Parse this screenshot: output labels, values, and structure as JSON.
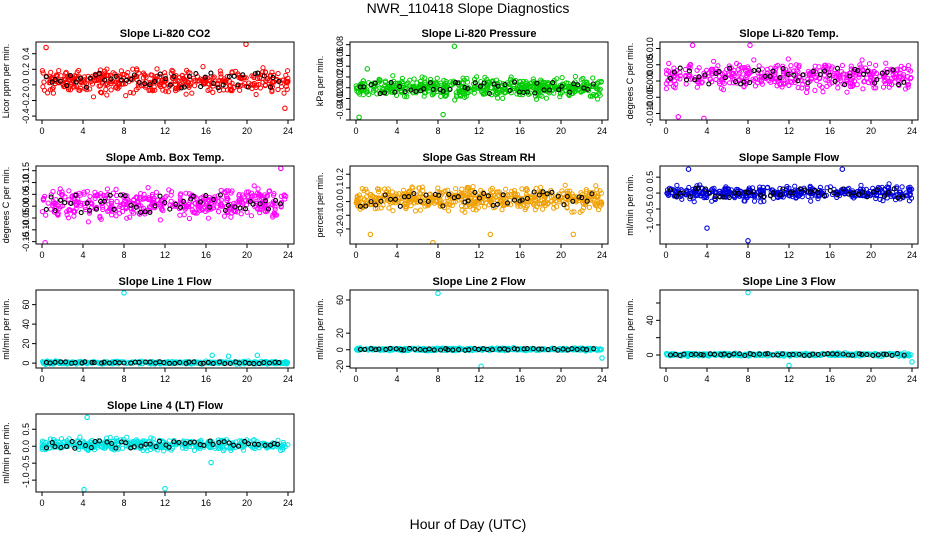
{
  "page": {
    "title": "NWR_110418  Slope Diagnostics",
    "xlabel": "Hour of Day (UTC)"
  },
  "chart_data": [
    {
      "type": "scatter",
      "title": "Slope Li-820 CO2",
      "ylabel": "Licor ppm per min.",
      "xlim": [
        0,
        24
      ],
      "xticks": [
        0,
        4,
        8,
        12,
        16,
        20,
        24
      ],
      "ylim": [
        -0.45,
        0.55
      ],
      "yticks": [
        -0.4,
        -0.2,
        0.0,
        0.2,
        0.4
      ],
      "ytick_labels": [
        "-0.4",
        "-0.2",
        "0.0",
        "0.2",
        "0.4"
      ],
      "color": "#ff0000",
      "center": 0.05,
      "spread": 0.38,
      "count": 420,
      "outliers": [
        [
          19.9,
          0.52
        ],
        [
          0.4,
          0.48
        ],
        [
          23.7,
          -0.3
        ]
      ]
    },
    {
      "type": "scatter",
      "title": "Slope Li-820 Pressure",
      "ylabel": "kPa per min.",
      "xlim": [
        0,
        24
      ],
      "xticks": [
        0,
        4,
        8,
        12,
        16,
        20,
        24
      ],
      "ylim": [
        -0.06,
        0.085
      ],
      "yticks": [
        -0.06,
        -0.04,
        -0.02,
        0.0,
        0.02,
        0.04,
        0.06,
        0.08
      ],
      "ytick_labels": [
        "",
        "-0.04",
        "-0.02",
        "0.00",
        "0.02",
        "0.04",
        "0.06",
        "0.08"
      ],
      "color": "#00cc00",
      "center": 0.0,
      "spread": 0.04,
      "count": 520,
      "outliers": [
        [
          9.6,
          0.077
        ],
        [
          0.3,
          -0.055
        ],
        [
          1.1,
          0.035
        ],
        [
          8.5,
          -0.05
        ]
      ]
    },
    {
      "type": "scatter",
      "title": "Slope Li-820 Temp.",
      "ylabel": "degrees C per min.",
      "xlim": [
        0,
        24
      ],
      "xticks": [
        0,
        4,
        8,
        12,
        16,
        20,
        24
      ],
      "ylim": [
        -0.012,
        0.012
      ],
      "yticks": [
        -0.01,
        -0.005,
        0.0,
        0.005,
        0.01
      ],
      "ytick_labels": [
        "-0.010",
        "-0.005",
        "0.000",
        "0.005",
        "0.010"
      ],
      "color": "#ff00ff",
      "center": 0.0015,
      "spread": 0.01,
      "count": 420,
      "outliers": [
        [
          2.6,
          0.011
        ],
        [
          8.2,
          0.011
        ],
        [
          1.2,
          -0.011
        ],
        [
          3.7,
          -0.0115
        ]
      ]
    },
    {
      "type": "scatter",
      "title": "Slope Amb. Box Temp.",
      "ylabel": "degrees C per min.",
      "xlim": [
        0,
        24
      ],
      "xticks": [
        0,
        4,
        8,
        12,
        16,
        20,
        24
      ],
      "ylim": [
        -0.16,
        0.17
      ],
      "yticks": [
        -0.15,
        -0.1,
        -0.05,
        0.0,
        0.05,
        0.1,
        0.15
      ],
      "ytick_labels": [
        "-0.15",
        "-0.10",
        "-0.05",
        "0.00",
        "0.05",
        "0.10",
        "0.15"
      ],
      "color": "#ff00ff",
      "center": 0.01,
      "spread": 0.14,
      "count": 440,
      "outliers": [
        [
          23.3,
          0.16
        ],
        [
          0.3,
          -0.155
        ]
      ]
    },
    {
      "type": "scatter",
      "title": "Slope Gas Stream RH",
      "ylabel": "percent per min.",
      "xlim": [
        0,
        24
      ],
      "xticks": [
        0,
        4,
        8,
        12,
        16,
        20,
        24
      ],
      "ylim": [
        -0.31,
        0.26
      ],
      "yticks": [
        -0.2,
        -0.1,
        0.0,
        0.1,
        0.2
      ],
      "ytick_labels": [
        "-0.2",
        "-0.1",
        "0.0",
        "0.1",
        "0.2"
      ],
      "color": "#f0a000",
      "center": 0.02,
      "spread": 0.2,
      "count": 520,
      "outliers": [
        [
          7.5,
          -0.3
        ],
        [
          1.4,
          -0.24
        ],
        [
          13.1,
          -0.24
        ],
        [
          21.2,
          -0.24
        ]
      ]
    },
    {
      "type": "scatter",
      "title": "Slope Sample Flow",
      "ylabel": "ml/min per min.",
      "xlim": [
        0,
        24
      ],
      "xticks": [
        0,
        4,
        8,
        12,
        16,
        20,
        24
      ],
      "ylim": [
        -1.6,
        0.85
      ],
      "yticks": [
        -1.0,
        -0.5,
        0.0,
        0.5
      ],
      "ytick_labels": [
        "-1.0",
        "-0.5",
        "0.0",
        "0.5"
      ],
      "color": "#0000dd",
      "center": 0.0,
      "spread": 0.55,
      "count": 420,
      "outliers": [
        [
          8.0,
          -1.5
        ],
        [
          4.0,
          -1.1
        ],
        [
          2.2,
          0.75
        ],
        [
          17.2,
          0.75
        ]
      ]
    },
    {
      "type": "scatter",
      "title": "Slope Line 1 Flow",
      "ylabel": "ml/min per min.",
      "xlim": [
        0,
        24
      ],
      "xticks": [
        0,
        4,
        8,
        12,
        16,
        20,
        24
      ],
      "ylim": [
        -5,
        75
      ],
      "yticks": [
        0,
        20,
        40,
        60
      ],
      "ytick_labels": [
        "0",
        "20",
        "40",
        "60"
      ],
      "color": "#00e5e5",
      "center": 0.5,
      "spread": 3.5,
      "count": 400,
      "outliers": [
        [
          8.0,
          72
        ],
        [
          16.6,
          8
        ],
        [
          18.2,
          7
        ],
        [
          21.0,
          8
        ]
      ]
    },
    {
      "type": "scatter",
      "title": "Slope Line 2 Flow",
      "ylabel": "ml/min per min.",
      "xlim": [
        0,
        24
      ],
      "xticks": [
        0,
        4,
        8,
        12,
        16,
        20,
        24
      ],
      "ylim": [
        -22,
        72
      ],
      "yticks": [
        -20,
        0,
        20,
        60
      ],
      "ytick_labels": [
        "-20",
        "0",
        "20",
        "60"
      ],
      "color": "#00e5e5",
      "center": 0.5,
      "spread": 4,
      "count": 400,
      "outliers": [
        [
          8.0,
          68
        ],
        [
          12.2,
          -20
        ],
        [
          24.0,
          -10
        ]
      ]
    },
    {
      "type": "scatter",
      "title": "Slope Line 3 Flow",
      "ylabel": "ml/min per min.",
      "xlim": [
        0,
        24
      ],
      "xticks": [
        0,
        4,
        8,
        12,
        16,
        20,
        24
      ],
      "ylim": [
        -15,
        75
      ],
      "yticks": [
        0,
        20,
        40,
        60
      ],
      "ytick_labels": [
        "0",
        "",
        "40",
        ""
      ],
      "color": "#00e5e5",
      "center": 0.5,
      "spread": 4,
      "count": 400,
      "outliers": [
        [
          8.0,
          72
        ],
        [
          12.0,
          -12
        ],
        [
          24.0,
          -8
        ]
      ]
    },
    {
      "type": "scatter",
      "title": "Slope Line 4 (LT) Flow",
      "ylabel": "ml/min per min.",
      "xlim": [
        0,
        24
      ],
      "xticks": [
        0,
        4,
        8,
        12,
        16,
        20,
        24
      ],
      "ylim": [
        -1.35,
        0.95
      ],
      "yticks": [
        -1.0,
        -0.5,
        0.0,
        0.5
      ],
      "ytick_labels": [
        "-1.0",
        "-0.5",
        "0.0",
        "0.5"
      ],
      "color": "#00e5e5",
      "center": 0.05,
      "spread": 0.4,
      "count": 420,
      "outliers": [
        [
          4.1,
          -1.28
        ],
        [
          12.0,
          -1.25
        ],
        [
          16.5,
          -0.48
        ],
        [
          4.4,
          0.85
        ]
      ]
    }
  ]
}
